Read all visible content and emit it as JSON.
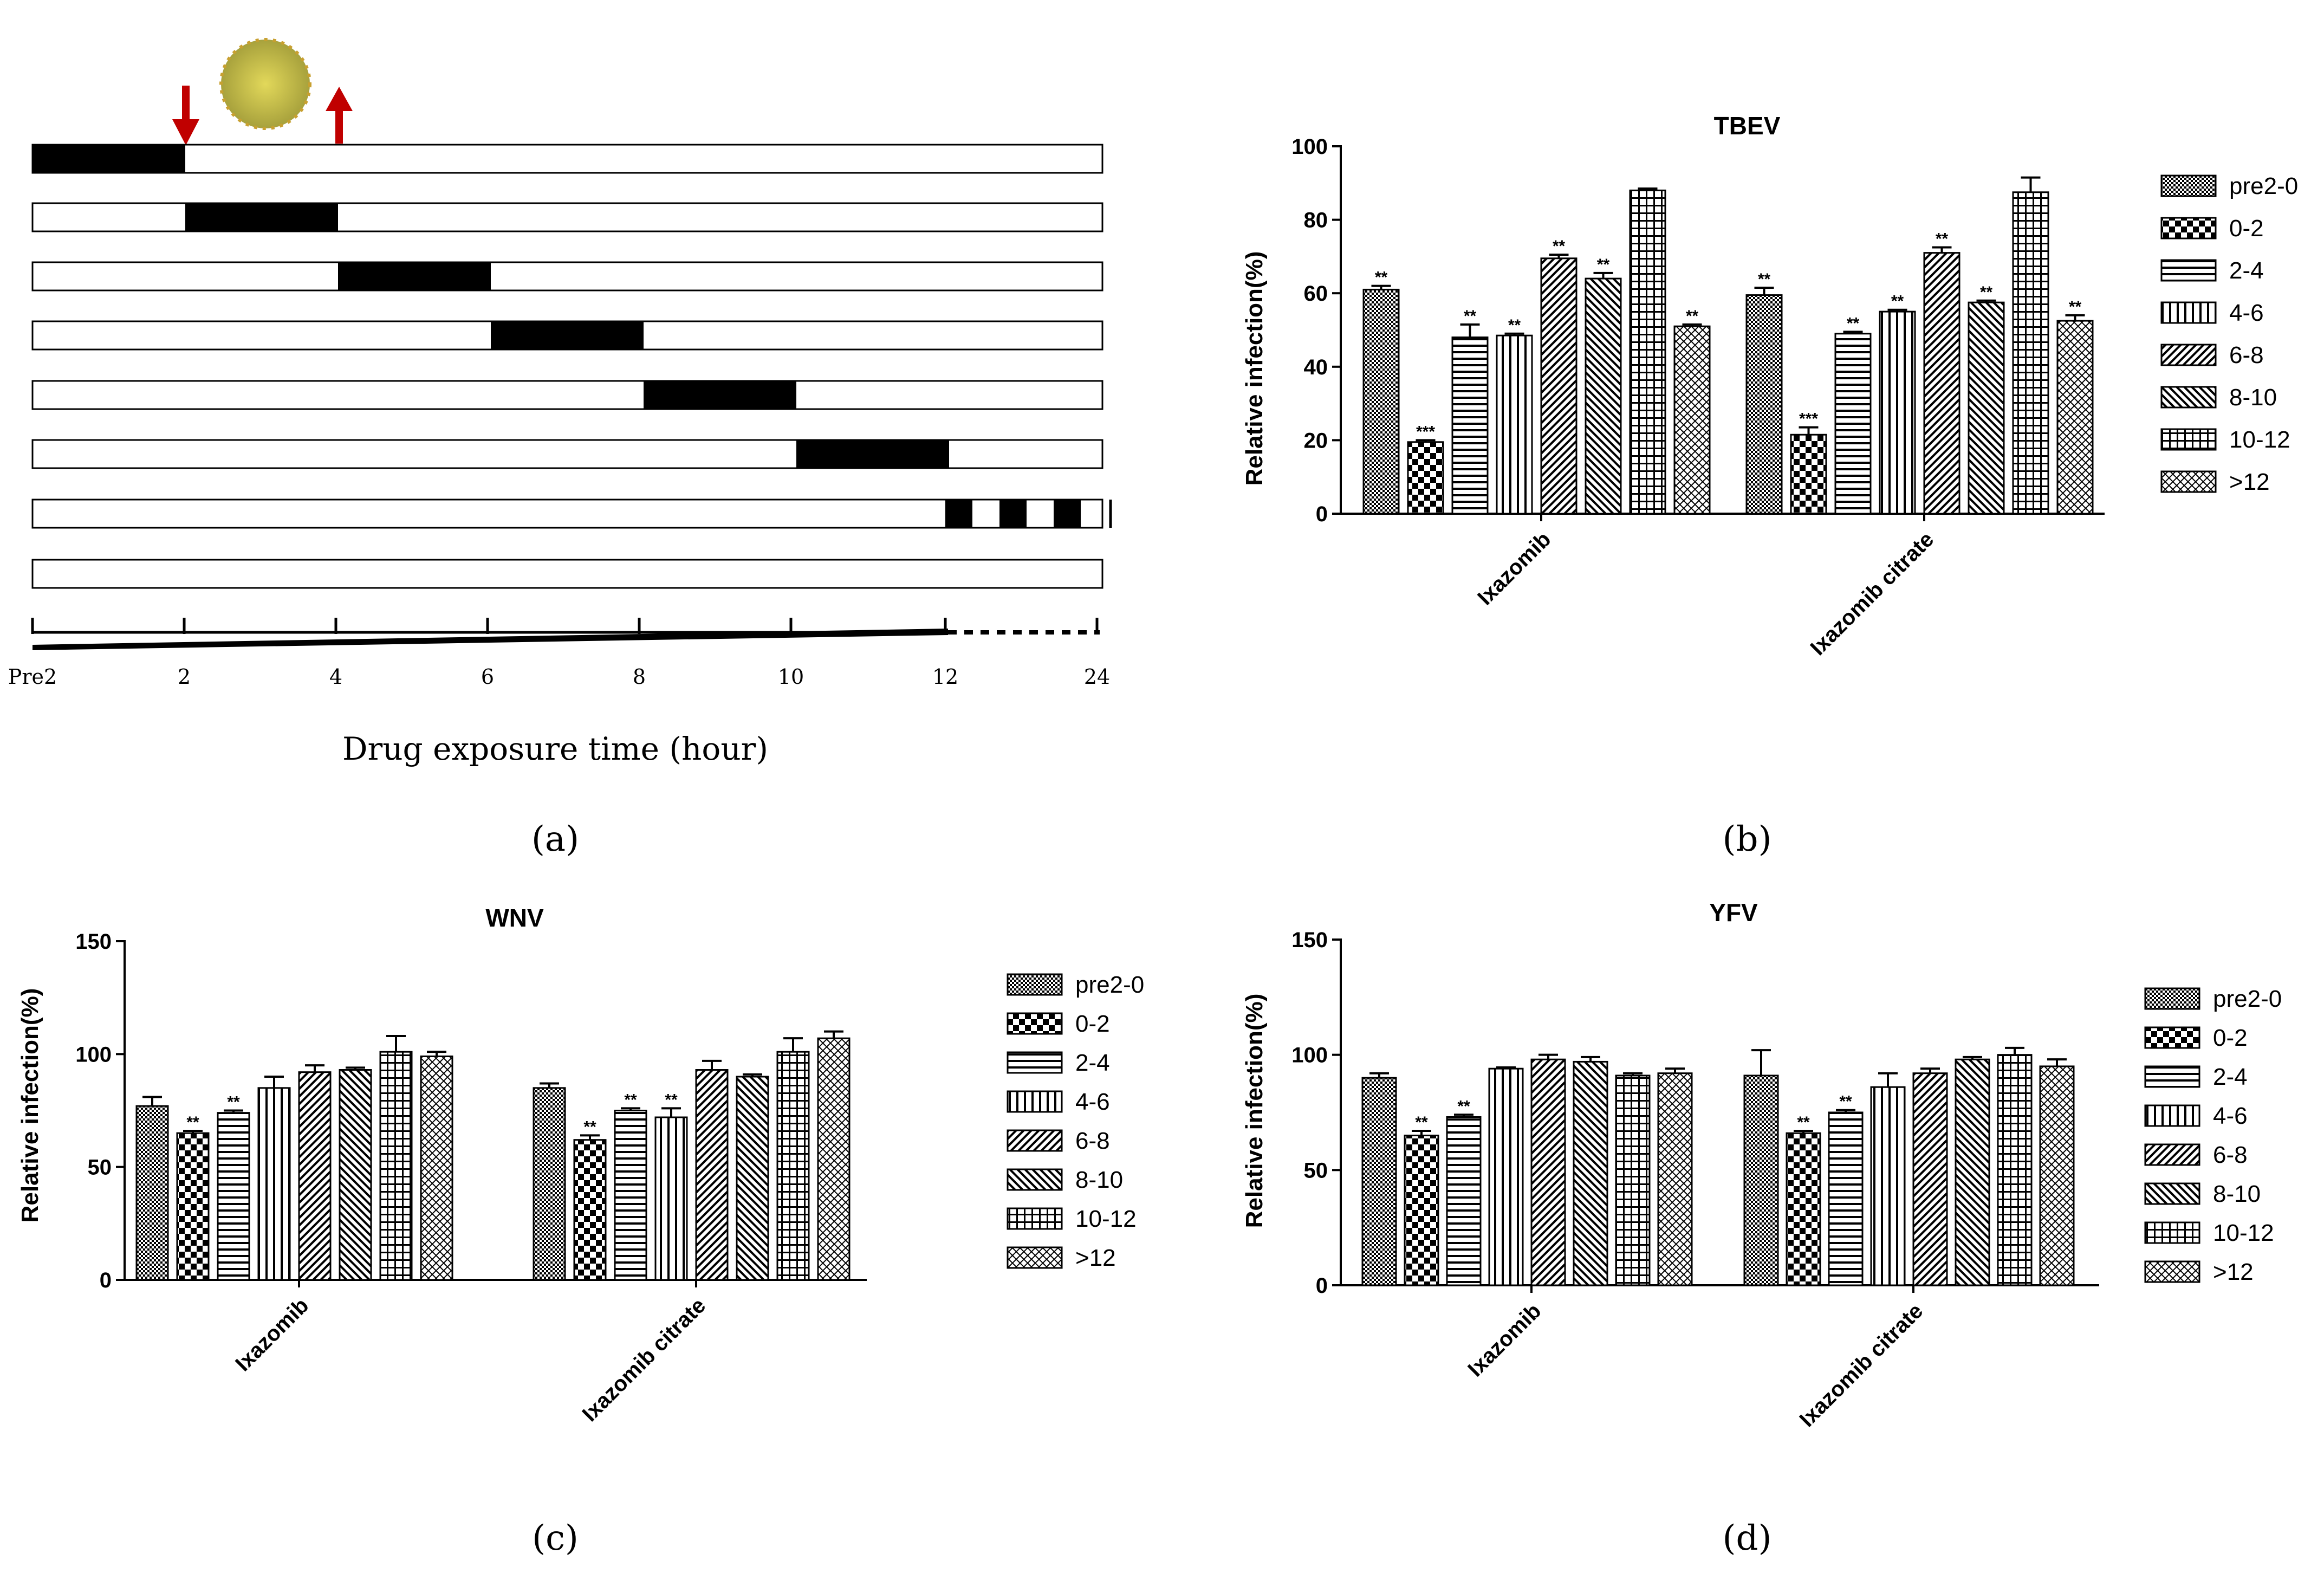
{
  "panel_labels": [
    "(a)",
    "(b)",
    "(c)",
    "(d)"
  ],
  "timeline": {
    "tick_labels": [
      "Pre2",
      "2",
      "4",
      "6",
      "8",
      "10",
      "12",
      "24"
    ],
    "xlabel": "Drug exposure time (hour)",
    "rows": 8,
    "arrow_colors": {
      "down": "#c00000",
      "up": "#c00000"
    },
    "virus_color": "#c9c34a"
  },
  "legend_labels": [
    "pre2-0",
    "0-2",
    "2-4",
    "4-6",
    "6-8",
    "8-10",
    "10-12",
    ">12"
  ],
  "chart_data": [
    {
      "type": "bar",
      "title": "TBEV",
      "ylabel": "Relative infection(%)",
      "ylim": [
        0,
        100
      ],
      "yticks": [
        "0",
        "20",
        "40",
        "60",
        "80",
        "100"
      ],
      "categories": [
        "Ixazomib",
        "Ixazomib citrate"
      ],
      "series": [
        {
          "name": "pre2-0",
          "values": [
            61,
            59.5
          ],
          "errors": [
            1,
            2
          ],
          "sig": [
            "**",
            "**"
          ]
        },
        {
          "name": "0-2",
          "values": [
            19.5,
            21.5
          ],
          "errors": [
            0.5,
            2
          ],
          "sig": [
            "***",
            "***"
          ]
        },
        {
          "name": "2-4",
          "values": [
            48,
            49
          ],
          "errors": [
            3.5,
            0.5
          ],
          "sig": [
            "**",
            "**"
          ]
        },
        {
          "name": "4-6",
          "values": [
            48.5,
            55
          ],
          "errors": [
            0.5,
            0.5
          ],
          "sig": [
            "**",
            "**"
          ]
        },
        {
          "name": "6-8",
          "values": [
            69.5,
            71
          ],
          "errors": [
            1,
            1.5
          ],
          "sig": [
            "**",
            "**"
          ]
        },
        {
          "name": "8-10",
          "values": [
            64,
            57.5
          ],
          "errors": [
            1.5,
            0.5
          ],
          "sig": [
            "**",
            "**"
          ]
        },
        {
          "name": "10-12",
          "values": [
            88,
            87.5
          ],
          "errors": [
            0.5,
            4
          ],
          "sig": [
            "",
            ""
          ]
        },
        {
          "name": ">12",
          "values": [
            51,
            52.5
          ],
          "errors": [
            0.5,
            1.5
          ],
          "sig": [
            "**",
            "**"
          ]
        }
      ]
    },
    {
      "type": "bar",
      "title": "WNV",
      "ylabel": "Relative infection(%)",
      "ylim": [
        0,
        150
      ],
      "yticks": [
        "0",
        "50",
        "100",
        "150"
      ],
      "categories": [
        "Ixazomib",
        "Ixazomib citrate"
      ],
      "series": [
        {
          "name": "pre2-0",
          "values": [
            77,
            85
          ],
          "errors": [
            4,
            2
          ],
          "sig": [
            "",
            ""
          ]
        },
        {
          "name": "0-2",
          "values": [
            65,
            62
          ],
          "errors": [
            1,
            2
          ],
          "sig": [
            "**",
            "**"
          ]
        },
        {
          "name": "2-4",
          "values": [
            74,
            75
          ],
          "errors": [
            1,
            1
          ],
          "sig": [
            "**",
            "**"
          ]
        },
        {
          "name": "4-6",
          "values": [
            85,
            72
          ],
          "errors": [
            5,
            4
          ],
          "sig": [
            "",
            "**"
          ]
        },
        {
          "name": "6-8",
          "values": [
            92,
            93
          ],
          "errors": [
            3,
            4
          ],
          "sig": [
            "",
            ""
          ]
        },
        {
          "name": "8-10",
          "values": [
            93,
            90
          ],
          "errors": [
            1,
            1
          ],
          "sig": [
            "",
            ""
          ]
        },
        {
          "name": "10-12",
          "values": [
            101,
            101
          ],
          "errors": [
            7,
            6
          ],
          "sig": [
            "",
            ""
          ]
        },
        {
          "name": ">12",
          "values": [
            99,
            107
          ],
          "errors": [
            2,
            3
          ],
          "sig": [
            "",
            ""
          ]
        }
      ]
    },
    {
      "type": "bar",
      "title": "YFV",
      "ylabel": "Relative infection(%)",
      "ylim": [
        0,
        150
      ],
      "yticks": [
        "0",
        "50",
        "100",
        "150"
      ],
      "categories": [
        "Ixazomib",
        "Ixazomib citrate"
      ],
      "series": [
        {
          "name": "pre2-0",
          "values": [
            90,
            91
          ],
          "errors": [
            2,
            11
          ],
          "sig": [
            "",
            ""
          ]
        },
        {
          "name": "0-2",
          "values": [
            65,
            66
          ],
          "errors": [
            2,
            1
          ],
          "sig": [
            "**",
            "**"
          ]
        },
        {
          "name": "2-4",
          "values": [
            73,
            75
          ],
          "errors": [
            1,
            1
          ],
          "sig": [
            "**",
            "**"
          ]
        },
        {
          "name": "4-6",
          "values": [
            94,
            86
          ],
          "errors": [
            0.5,
            6
          ],
          "sig": [
            "",
            ""
          ]
        },
        {
          "name": "6-8",
          "values": [
            98,
            92
          ],
          "errors": [
            2,
            2
          ],
          "sig": [
            "",
            ""
          ]
        },
        {
          "name": "8-10",
          "values": [
            97,
            98
          ],
          "errors": [
            2,
            1
          ],
          "sig": [
            "",
            ""
          ]
        },
        {
          "name": "10-12",
          "values": [
            91,
            100
          ],
          "errors": [
            1,
            3
          ],
          "sig": [
            "",
            ""
          ]
        },
        {
          "name": ">12",
          "values": [
            92,
            95
          ],
          "errors": [
            2,
            3
          ],
          "sig": [
            "",
            ""
          ]
        }
      ]
    }
  ]
}
